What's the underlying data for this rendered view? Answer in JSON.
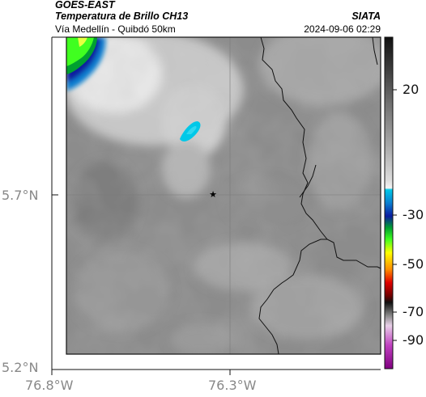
{
  "header": {
    "satellite": "GOES-EAST",
    "product": "Temperatura de Brillo CH13",
    "region": "Vía Medellín - Quibdó 50km",
    "agency": "SIATA",
    "datetime": "2024-09-06 02:29"
  },
  "axes": {
    "lat_ticks": [
      "5.7°N",
      "5.2°N"
    ],
    "lon_ticks": [
      "76.8°W",
      "76.3°W"
    ]
  },
  "colorbar": {
    "ticks": [
      "20",
      "-30",
      "-50",
      "-70",
      "-90"
    ]
  },
  "marker": {
    "symbol": "★",
    "name": "star"
  }
}
